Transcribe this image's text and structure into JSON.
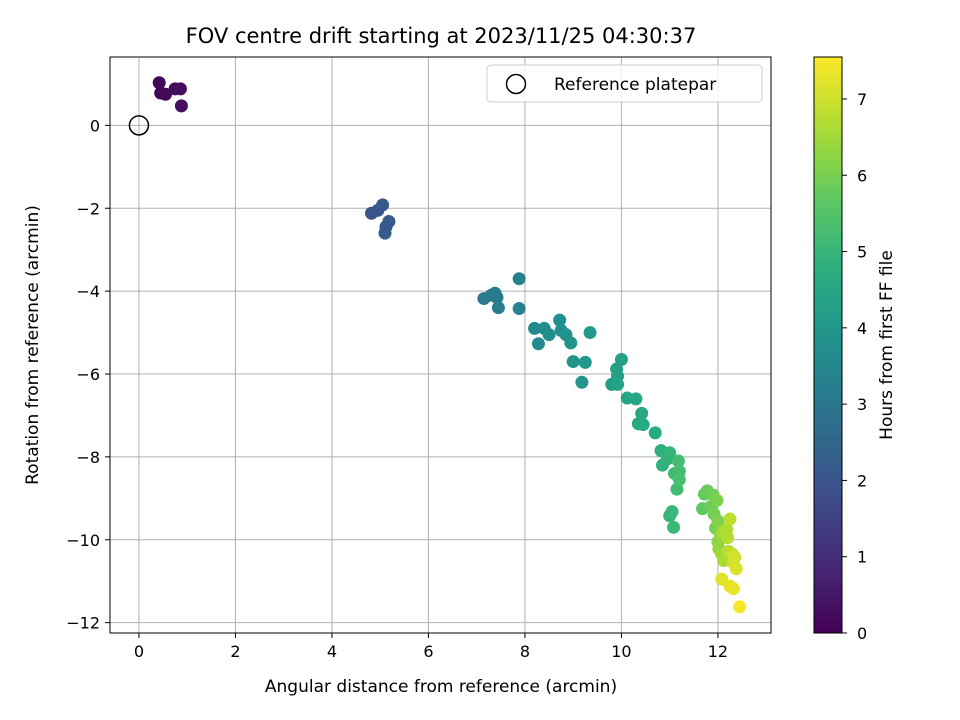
{
  "chart_data": {
    "type": "scatter",
    "title": "FOV centre drift starting at 2023/11/25 04:30:37",
    "xlabel": "Angular distance from reference (arcmin)",
    "ylabel": "Rotation from reference (arcmin)",
    "colorbar_label": "Hours from first FF file",
    "xlim": [
      -0.6,
      13.1
    ],
    "ylim": [
      -12.25,
      1.65
    ],
    "clim": [
      0,
      7.55
    ],
    "x_ticks": [
      0,
      2,
      4,
      6,
      8,
      10,
      12
    ],
    "y_ticks": [
      0,
      -2,
      -4,
      -6,
      -8,
      -10,
      -12
    ],
    "c_ticks": [
      0,
      1,
      2,
      3,
      4,
      5,
      6,
      7
    ],
    "grid": true,
    "colormap": "viridis",
    "legend": {
      "placement": "top-right",
      "entries": [
        {
          "label": "Reference platepar",
          "marker": "open-circle"
        }
      ]
    },
    "reference_point": {
      "x": 0,
      "y": 0
    },
    "points": [
      {
        "x": 0.42,
        "y": 1.03,
        "c": 0.1
      },
      {
        "x": 0.45,
        "y": 0.78,
        "c": 0.12
      },
      {
        "x": 0.55,
        "y": 0.75,
        "c": 0.15
      },
      {
        "x": 0.75,
        "y": 0.88,
        "c": 0.2
      },
      {
        "x": 0.86,
        "y": 0.88,
        "c": 0.25
      },
      {
        "x": 0.88,
        "y": 0.47,
        "c": 0.3
      },
      {
        "x": 4.82,
        "y": -2.12,
        "c": 1.95
      },
      {
        "x": 4.95,
        "y": -2.05,
        "c": 2.0
      },
      {
        "x": 5.05,
        "y": -1.92,
        "c": 2.05
      },
      {
        "x": 5.12,
        "y": -2.45,
        "c": 2.1
      },
      {
        "x": 5.18,
        "y": -2.32,
        "c": 2.12
      },
      {
        "x": 5.1,
        "y": -2.6,
        "c": 2.15
      },
      {
        "x": 7.15,
        "y": -4.18,
        "c": 3.05
      },
      {
        "x": 7.3,
        "y": -4.1,
        "c": 3.1
      },
      {
        "x": 7.38,
        "y": -4.05,
        "c": 3.12
      },
      {
        "x": 7.42,
        "y": -4.15,
        "c": 3.15
      },
      {
        "x": 7.45,
        "y": -4.4,
        "c": 3.2
      },
      {
        "x": 7.88,
        "y": -3.7,
        "c": 3.3
      },
      {
        "x": 7.88,
        "y": -4.42,
        "c": 3.35
      },
      {
        "x": 8.2,
        "y": -4.9,
        "c": 3.55
      },
      {
        "x": 8.28,
        "y": -5.27,
        "c": 3.6
      },
      {
        "x": 8.4,
        "y": -4.9,
        "c": 3.65
      },
      {
        "x": 8.5,
        "y": -5.05,
        "c": 3.7
      },
      {
        "x": 8.72,
        "y": -4.7,
        "c": 3.75
      },
      {
        "x": 8.75,
        "y": -4.95,
        "c": 3.8
      },
      {
        "x": 8.85,
        "y": -5.05,
        "c": 3.85
      },
      {
        "x": 8.95,
        "y": -5.25,
        "c": 3.9
      },
      {
        "x": 9.0,
        "y": -5.7,
        "c": 3.95
      },
      {
        "x": 9.18,
        "y": -6.2,
        "c": 4.0
      },
      {
        "x": 9.25,
        "y": -5.72,
        "c": 4.05
      },
      {
        "x": 9.35,
        "y": -5.0,
        "c": 4.1
      },
      {
        "x": 9.8,
        "y": -6.25,
        "c": 4.2
      },
      {
        "x": 9.9,
        "y": -5.88,
        "c": 4.25
      },
      {
        "x": 9.92,
        "y": -6.05,
        "c": 4.3
      },
      {
        "x": 9.92,
        "y": -6.25,
        "c": 4.32
      },
      {
        "x": 10.0,
        "y": -5.65,
        "c": 4.35
      },
      {
        "x": 10.12,
        "y": -6.58,
        "c": 4.45
      },
      {
        "x": 10.3,
        "y": -6.6,
        "c": 4.5
      },
      {
        "x": 10.35,
        "y": -7.2,
        "c": 4.55
      },
      {
        "x": 10.42,
        "y": -6.95,
        "c": 4.6
      },
      {
        "x": 10.45,
        "y": -7.22,
        "c": 4.62
      },
      {
        "x": 10.7,
        "y": -7.42,
        "c": 4.7
      },
      {
        "x": 10.82,
        "y": -7.85,
        "c": 4.8
      },
      {
        "x": 10.85,
        "y": -8.2,
        "c": 4.85
      },
      {
        "x": 10.95,
        "y": -8.05,
        "c": 4.9
      },
      {
        "x": 11.0,
        "y": -7.9,
        "c": 4.95
      },
      {
        "x": 11.0,
        "y": -9.42,
        "c": 5.0
      },
      {
        "x": 11.05,
        "y": -9.32,
        "c": 5.05
      },
      {
        "x": 11.08,
        "y": -9.7,
        "c": 5.1
      },
      {
        "x": 11.1,
        "y": -8.4,
        "c": 5.15
      },
      {
        "x": 11.15,
        "y": -8.78,
        "c": 5.2
      },
      {
        "x": 11.18,
        "y": -8.1,
        "c": 5.25
      },
      {
        "x": 11.2,
        "y": -8.35,
        "c": 5.28
      },
      {
        "x": 11.2,
        "y": -8.55,
        "c": 5.3
      },
      {
        "x": 11.68,
        "y": -9.25,
        "c": 5.7
      },
      {
        "x": 11.72,
        "y": -8.9,
        "c": 5.75
      },
      {
        "x": 11.78,
        "y": -8.82,
        "c": 5.8
      },
      {
        "x": 11.85,
        "y": -9.2,
        "c": 5.85
      },
      {
        "x": 11.9,
        "y": -8.92,
        "c": 5.9
      },
      {
        "x": 11.92,
        "y": -9.38,
        "c": 5.95
      },
      {
        "x": 11.95,
        "y": -9.72,
        "c": 6.0
      },
      {
        "x": 11.98,
        "y": -9.05,
        "c": 6.05
      },
      {
        "x": 12.0,
        "y": -9.55,
        "c": 6.1
      },
      {
        "x": 12.0,
        "y": -10.05,
        "c": 6.2
      },
      {
        "x": 12.02,
        "y": -10.22,
        "c": 6.3
      },
      {
        "x": 12.05,
        "y": -9.9,
        "c": 6.35
      },
      {
        "x": 12.08,
        "y": -10.35,
        "c": 6.5
      },
      {
        "x": 12.1,
        "y": -9.8,
        "c": 6.55
      },
      {
        "x": 12.12,
        "y": -10.5,
        "c": 6.6
      },
      {
        "x": 12.18,
        "y": -9.75,
        "c": 6.65
      },
      {
        "x": 12.2,
        "y": -9.95,
        "c": 6.7
      },
      {
        "x": 12.22,
        "y": -10.28,
        "c": 6.75
      },
      {
        "x": 12.25,
        "y": -9.5,
        "c": 6.8
      },
      {
        "x": 12.3,
        "y": -10.35,
        "c": 6.9
      },
      {
        "x": 12.32,
        "y": -10.55,
        "c": 7.0
      },
      {
        "x": 12.35,
        "y": -10.42,
        "c": 7.05
      },
      {
        "x": 12.38,
        "y": -10.7,
        "c": 7.15
      },
      {
        "x": 12.08,
        "y": -10.95,
        "c": 7.2
      },
      {
        "x": 12.25,
        "y": -11.12,
        "c": 7.3
      },
      {
        "x": 12.32,
        "y": -11.18,
        "c": 7.35
      },
      {
        "x": 12.45,
        "y": -11.62,
        "c": 7.5
      }
    ]
  }
}
